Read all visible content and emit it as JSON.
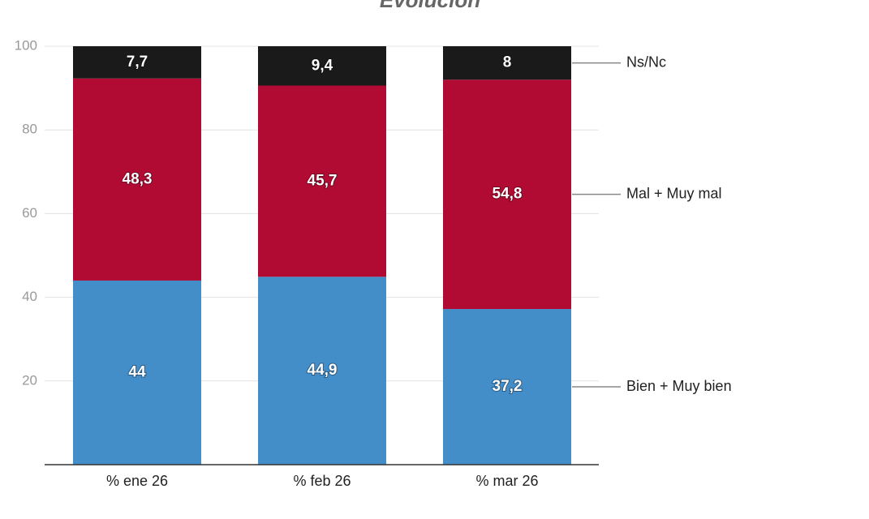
{
  "chart_data": {
    "type": "stacked_bar",
    "title": "Evolución",
    "categories": [
      "% ene 26",
      "% feb 26",
      "% mar 26"
    ],
    "series": [
      {
        "name": "Bien + Muy bien",
        "color": "#438dc9",
        "values": [
          44,
          44.9,
          37.2
        ],
        "value_labels": [
          "44",
          "44,9",
          "37,2"
        ]
      },
      {
        "name": "Mal + Muy mal",
        "color": "#b10a33",
        "values": [
          48.3,
          45.7,
          54.8
        ],
        "value_labels": [
          "48,3",
          "45,7",
          "54,8"
        ]
      },
      {
        "name": "Ns/Nc",
        "color": "#1a1a1a",
        "values": [
          7.7,
          9.4,
          8
        ],
        "value_labels": [
          "7,7",
          "9,4",
          "8"
        ]
      }
    ],
    "ylim": [
      0,
      100
    ],
    "yticks": [
      20,
      40,
      60,
      80,
      100
    ],
    "grid": true,
    "legend": "right"
  }
}
